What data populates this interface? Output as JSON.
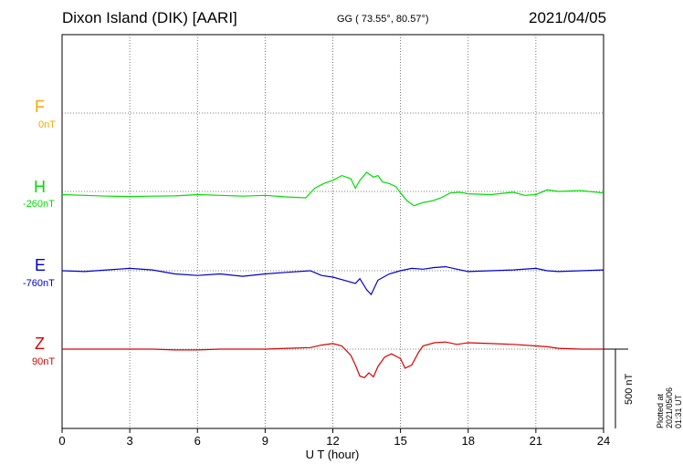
{
  "header": {
    "station": "Dixon Island (DIK)  [AARI]",
    "coords": "GG ( 73.55°,  80.57°)",
    "date": "2021/04/05"
  },
  "footer": {
    "plotted": "Plotted at 2021/05/06 01:31  UT",
    "scale_label": "500 nT"
  },
  "chart_data": {
    "type": "line",
    "title": "Dixon Island (DIK)  [AARI]",
    "xlabel": "U T (hour)",
    "xlim": [
      0,
      24
    ],
    "xticks": [
      "0",
      "3",
      "6",
      "9",
      "12",
      "15",
      "18",
      "21",
      "24"
    ],
    "grid": true,
    "scale_bar_nT": 500,
    "series": [
      {
        "name": "F",
        "baseline_label": "0nT",
        "color": "#f5a800",
        "x": [],
        "values": []
      },
      {
        "name": "H",
        "baseline_label": "-260nT",
        "color": "#00dd00",
        "x": [
          0,
          1,
          2,
          3,
          4,
          5,
          6,
          7,
          8,
          9,
          10,
          10.8,
          11.2,
          11.6,
          12,
          12.4,
          12.8,
          13,
          13.2,
          13.5,
          13.8,
          14,
          14.2,
          14.5,
          14.8,
          15,
          15.3,
          15.6,
          16,
          16.4,
          16.8,
          17.2,
          17.6,
          18,
          19,
          20,
          20.5,
          21,
          21.5,
          22,
          23,
          24
        ],
        "values": [
          -20,
          -25,
          -30,
          -32,
          -30,
          -28,
          -20,
          -25,
          -30,
          -25,
          -35,
          -40,
          20,
          50,
          70,
          100,
          80,
          20,
          70,
          120,
          90,
          100,
          60,
          50,
          30,
          -10,
          -60,
          -90,
          -70,
          -60,
          -40,
          -10,
          -5,
          -15,
          -20,
          -5,
          -25,
          -20,
          10,
          0,
          5,
          -10
        ]
      },
      {
        "name": "E",
        "baseline_label": "-760nT",
        "color": "#0000cc",
        "x": [
          0,
          1,
          2,
          3,
          4,
          5,
          6,
          7,
          8,
          9,
          10,
          11,
          11.5,
          12,
          12.5,
          13,
          13.2,
          13.5,
          13.7,
          14,
          14.5,
          15,
          15.5,
          16,
          16.5,
          17,
          17.5,
          18,
          19,
          20,
          21,
          21.5,
          22,
          23,
          24
        ],
        "values": [
          0,
          -5,
          5,
          15,
          5,
          -20,
          -30,
          -20,
          -35,
          -20,
          -10,
          0,
          -30,
          -40,
          -60,
          -80,
          -50,
          -120,
          -150,
          -60,
          -20,
          0,
          15,
          10,
          20,
          25,
          10,
          -5,
          0,
          5,
          15,
          0,
          -5,
          0,
          5
        ]
      },
      {
        "name": "Z",
        "baseline_label": "90nT",
        "color": "#dd0000",
        "x": [
          0,
          1,
          2,
          3,
          4,
          5,
          6,
          7,
          8,
          9,
          10,
          11,
          11.5,
          12,
          12.4,
          12.8,
          13,
          13.2,
          13.4,
          13.6,
          13.8,
          14,
          14.3,
          14.6,
          15,
          15.2,
          15.5,
          15.8,
          16,
          16.5,
          17,
          17.5,
          18,
          19,
          20,
          21,
          21.5,
          22,
          23,
          24
        ],
        "values": [
          0,
          0,
          0,
          0,
          0,
          -5,
          -5,
          0,
          0,
          0,
          5,
          10,
          25,
          35,
          20,
          -40,
          -100,
          -170,
          -180,
          -150,
          -175,
          -110,
          -50,
          -30,
          -60,
          -120,
          -100,
          -20,
          20,
          40,
          45,
          30,
          40,
          35,
          30,
          20,
          15,
          5,
          0,
          0
        ]
      }
    ]
  }
}
